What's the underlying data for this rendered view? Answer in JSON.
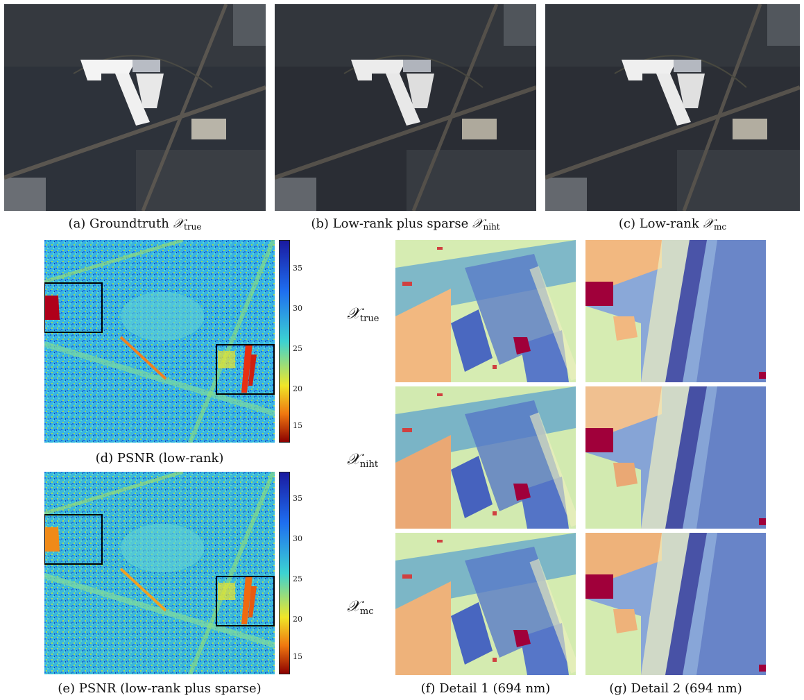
{
  "figure": {
    "captions": {
      "a": {
        "prefix": "(a) Groundtruth ",
        "sym": "X",
        "sub": "true"
      },
      "b": {
        "prefix": "(b) Low-rank plus sparse ",
        "sym": "X",
        "sub": "niht"
      },
      "c": {
        "prefix": "(c) Low-rank ",
        "sym": "X",
        "sub": "mc"
      },
      "d": "(d) PSNR (low-rank)",
      "e": "(e) PSNR (low-rank plus sparse)",
      "f": "(f) Detail 1 (694 nm)",
      "g": "(g) Detail 2 (694 nm)"
    },
    "row_labels": [
      {
        "sym": "X",
        "sub": "true"
      },
      {
        "sym": "X",
        "sub": "niht"
      },
      {
        "sym": "X",
        "sub": "mc"
      }
    ],
    "colorbar": {
      "ticks": [
        "35",
        "30",
        "25",
        "20",
        "15"
      ],
      "colors": {
        "top": "#1a1aa0",
        "upper": "#1e6ef0",
        "mid": "#3cd2d2",
        "low": "#f0e628",
        "bottom": "#8b0000"
      }
    },
    "colors": {
      "aerial_dark": "#2c3038",
      "aerial_light": "#f2f2f2",
      "psnr_base": "#3ab0e0",
      "detail_pale": "#d8edb0",
      "detail_blue": "#4a66c0",
      "detail_red": "#a0003a"
    }
  }
}
